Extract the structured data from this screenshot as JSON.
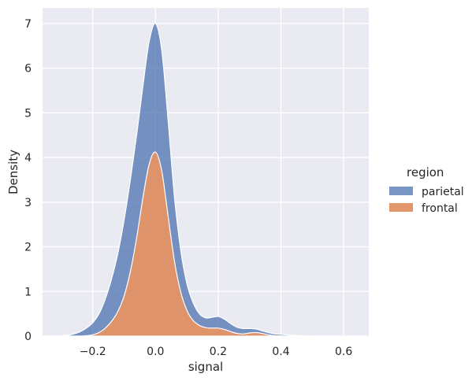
{
  "chart_data": {
    "type": "area",
    "xlabel": "signal",
    "ylabel": "Density",
    "xlim": [
      -0.36,
      0.68
    ],
    "ylim": [
      0,
      7.35
    ],
    "xticks": [
      -0.2,
      0.0,
      0.2,
      0.4,
      0.6
    ],
    "xtick_labels": [
      "−0.2",
      "0.0",
      "0.2",
      "0.4",
      "0.6"
    ],
    "yticks": [
      0,
      1,
      2,
      3,
      4,
      5,
      6,
      7
    ],
    "ytick_labels": [
      "0",
      "1",
      "2",
      "3",
      "4",
      "5",
      "6",
      "7"
    ],
    "grid": true,
    "stacked": true,
    "legend": {
      "title": "region",
      "placement": "outside-right",
      "entries": [
        "parietal",
        "frontal"
      ]
    },
    "x": [
      -0.33,
      -0.3,
      -0.28,
      -0.26,
      -0.24,
      -0.22,
      -0.2,
      -0.18,
      -0.16,
      -0.14,
      -0.12,
      -0.1,
      -0.08,
      -0.06,
      -0.04,
      -0.02,
      0.0,
      0.02,
      0.04,
      0.06,
      0.08,
      0.1,
      0.12,
      0.14,
      0.16,
      0.18,
      0.2,
      0.22,
      0.24,
      0.26,
      0.28,
      0.3,
      0.32,
      0.34,
      0.36,
      0.38,
      0.4,
      0.42,
      0.44,
      0.46,
      0.48,
      0.5,
      0.52
    ],
    "series": [
      {
        "name": "frontal",
        "color": "#dd8452",
        "values": [
          0,
          0,
          0,
          0,
          0,
          0.01,
          0.03,
          0.08,
          0.18,
          0.33,
          0.55,
          0.9,
          1.45,
          2.2,
          3.1,
          3.85,
          4.12,
          3.7,
          2.7,
          1.7,
          1.0,
          0.58,
          0.35,
          0.24,
          0.19,
          0.18,
          0.18,
          0.15,
          0.1,
          0.06,
          0.05,
          0.07,
          0.08,
          0.06,
          0.03,
          0.01,
          0.005,
          0,
          0,
          0,
          0,
          0,
          0
        ]
      },
      {
        "name": "parietal",
        "color": "#4c72b0",
        "values": [
          0,
          0.01,
          0.02,
          0.05,
          0.1,
          0.17,
          0.27,
          0.42,
          0.65,
          0.95,
          1.3,
          1.7,
          2.05,
          2.3,
          2.5,
          2.75,
          2.88,
          2.7,
          2.15,
          1.45,
          0.95,
          0.6,
          0.4,
          0.26,
          0.22,
          0.24,
          0.26,
          0.23,
          0.18,
          0.14,
          0.12,
          0.1,
          0.08,
          0.06,
          0.05,
          0.04,
          0.035,
          0.025,
          0.018,
          0.012,
          0.008,
          0.004,
          0
        ]
      }
    ]
  }
}
